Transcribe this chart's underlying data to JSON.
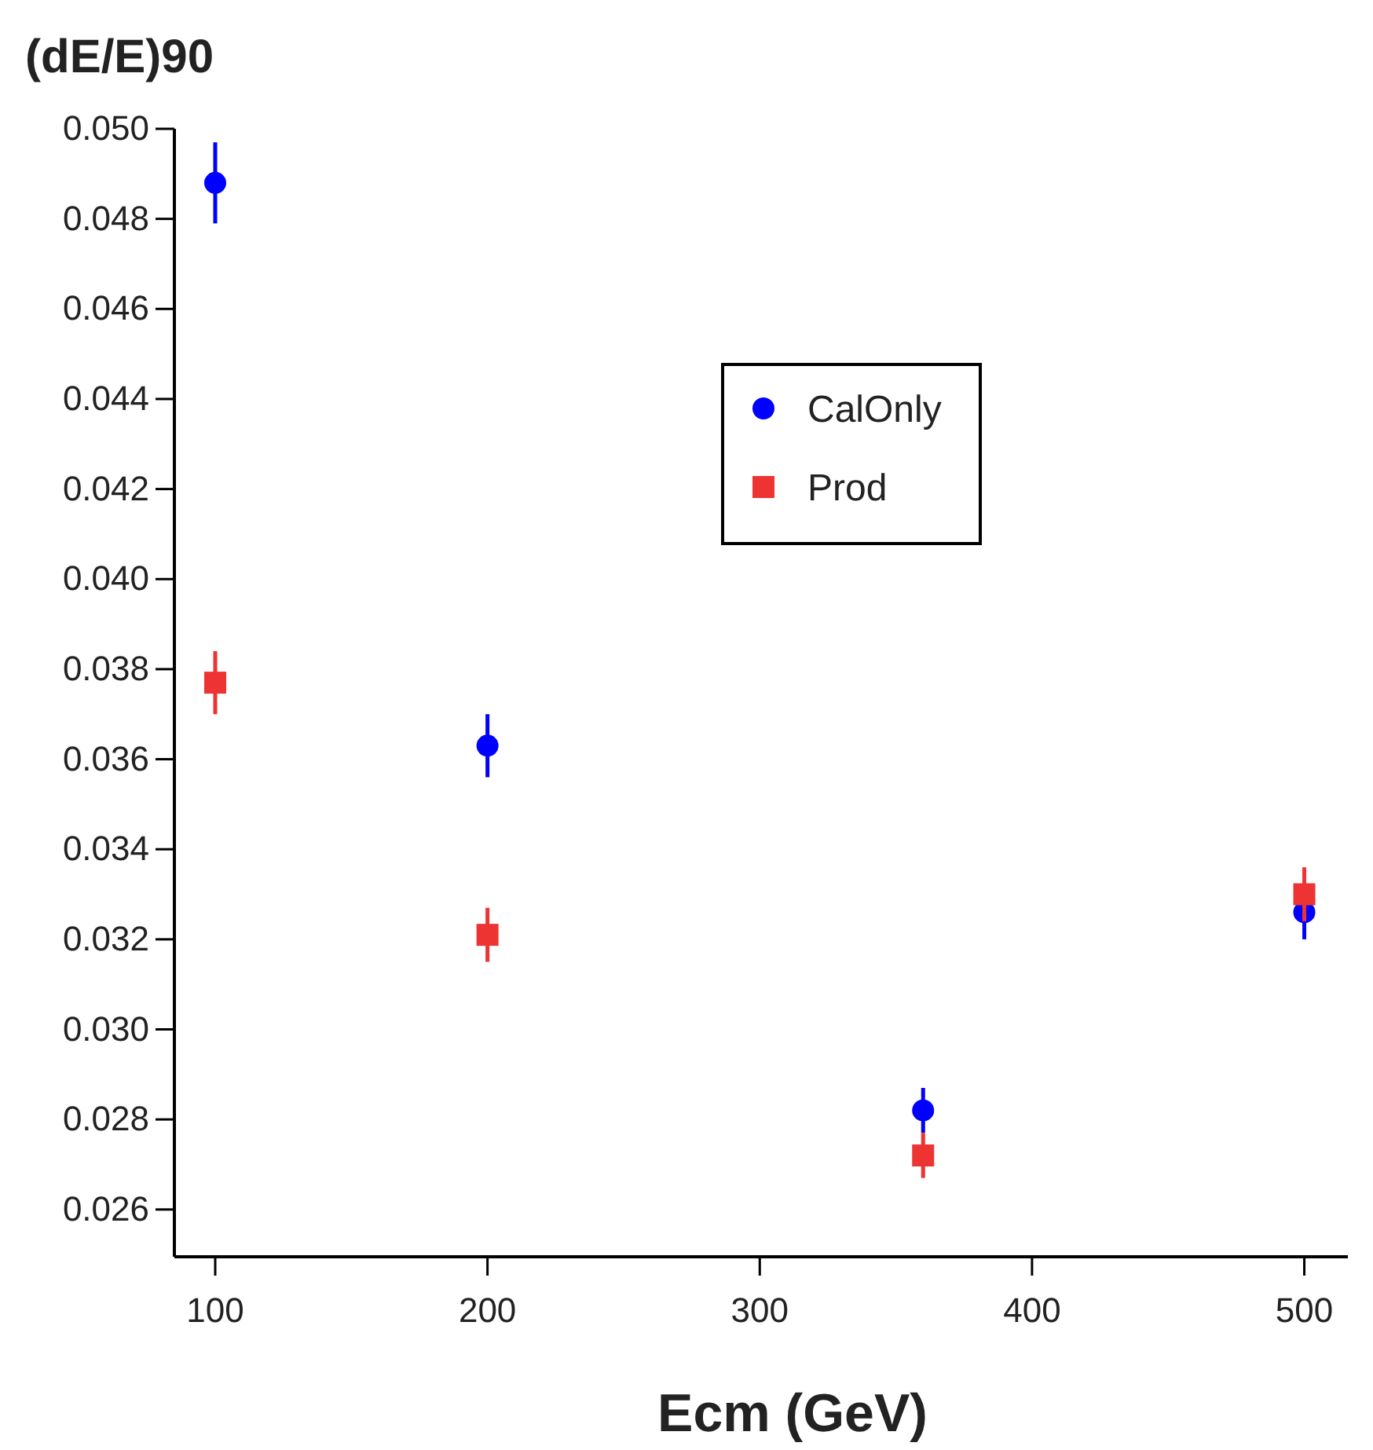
{
  "chart_data": {
    "type": "scatter",
    "ylabel": "(dE/E)90",
    "xlabel": "Ecm (GeV)",
    "x": [
      100,
      200,
      360,
      500
    ],
    "series": [
      {
        "name": "CalOnly",
        "color": "#0000ff",
        "marker": "circle",
        "values": [
          0.0488,
          0.0363,
          0.0282,
          0.0326
        ],
        "errors": [
          0.0009,
          0.0007,
          0.0005,
          0.0006
        ]
      },
      {
        "name": "Prod",
        "color": "#ee3333",
        "marker": "square",
        "values": [
          0.0377,
          0.0321,
          0.0272,
          0.033
        ],
        "errors": [
          0.0007,
          0.0006,
          0.0005,
          0.0006
        ]
      }
    ],
    "xlim": [
      85,
      516
    ],
    "xticks": [
      100,
      200,
      300,
      400,
      500
    ],
    "ylim": [
      0.02495,
      0.05
    ],
    "yticks": [
      {
        "value": 0.026,
        "label": "0.026"
      },
      {
        "value": 0.028,
        "label": "0.028"
      },
      {
        "value": 0.03,
        "label": "0.030"
      },
      {
        "value": 0.032,
        "label": "0.032"
      },
      {
        "value": 0.034,
        "label": "0.034"
      },
      {
        "value": 0.036,
        "label": "0.036"
      },
      {
        "value": 0.038,
        "label": "0.038"
      },
      {
        "value": 0.04,
        "label": "0.040"
      },
      {
        "value": 0.042,
        "label": "0.042"
      },
      {
        "value": 0.044,
        "label": "0.044"
      },
      {
        "value": 0.046,
        "label": "0.046"
      },
      {
        "value": 0.048,
        "label": "0.048"
      },
      {
        "value": 0.05,
        "label": "0.050"
      }
    ],
    "legend": "top",
    "grid": false
  }
}
